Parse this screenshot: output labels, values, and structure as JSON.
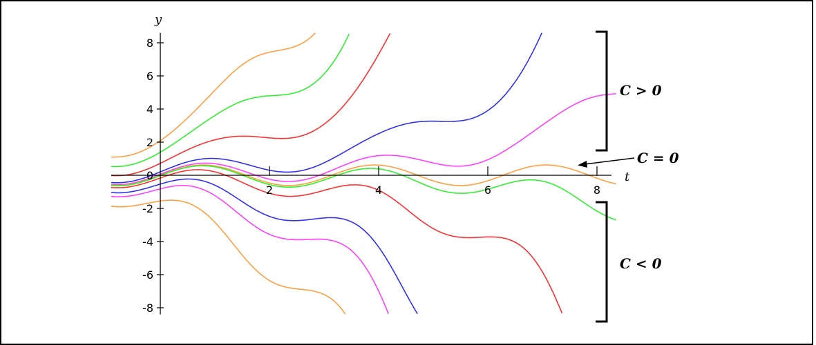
{
  "chart_data": {
    "type": "line",
    "xlabel": "t",
    "ylabel": "y",
    "xlim": [
      -0.9,
      8.35
    ],
    "ylim": [
      -8.4,
      8.6
    ],
    "x_ticks": [
      2,
      4,
      6,
      8
    ],
    "x_tick_labels": [
      "2",
      "4",
      "6",
      "8"
    ],
    "y_ticks": [
      -8,
      -6,
      -4,
      -2,
      0,
      2,
      4,
      6,
      8
    ],
    "y_tick_labels": [
      "-8",
      "-6",
      "-4",
      "-2",
      "0",
      "2",
      "4",
      "6",
      "8"
    ],
    "grid": false,
    "model": "y = 0.62*sin(2t) + C*exp(0.5t - 0.2*cos(2t))",
    "series": [
      {
        "C": 2.55,
        "color": "#ffa040"
      },
      {
        "C": 1.7,
        "color": "#30f030"
      },
      {
        "C": 0.88,
        "color": "#ff3030"
      },
      {
        "C": 0.25,
        "color": "#3030f0"
      },
      {
        "C": 0.075,
        "color": "#ff40ff"
      },
      {
        "C": 0.0,
        "color": "#ffa040"
      },
      {
        "C": -0.03,
        "color": "#30f030"
      },
      {
        "C": -0.2,
        "color": "#ff3030"
      },
      {
        "C": -0.65,
        "color": "#3030f0"
      },
      {
        "C": -1.0,
        "color": "#ff40ff"
      },
      {
        "C": -1.9,
        "color": "#ffa040"
      }
    ],
    "annotations": [
      {
        "text": "C > 0"
      },
      {
        "text": "C = 0"
      },
      {
        "text": "C < 0"
      }
    ]
  }
}
